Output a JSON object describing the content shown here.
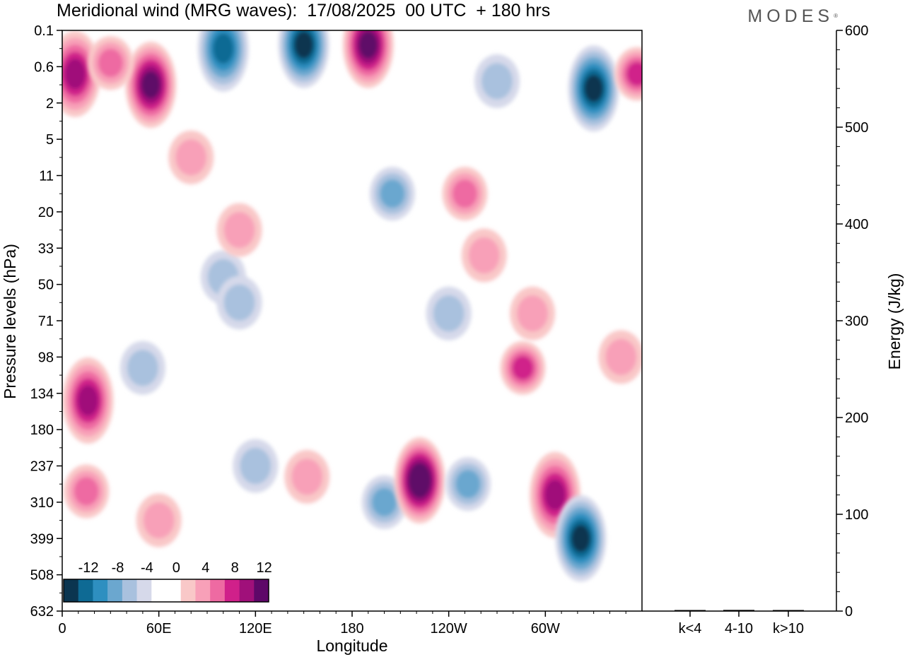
{
  "chart_data": [
    {
      "type": "heatmap",
      "title": "Meridional wind (MRG waves):  17/08/2025  00 UTC  + 180 hrs",
      "brand": "MODES",
      "brand_mark": "®",
      "xlabel": "Longitude",
      "ylabel": "Pressure levels (hPa)",
      "x_ticks": [
        {
          "label": "0",
          "lon": 0
        },
        {
          "label": "60E",
          "lon": 60
        },
        {
          "label": "120E",
          "lon": 120
        },
        {
          "label": "180",
          "lon": 180
        },
        {
          "label": "120W",
          "lon": 240
        },
        {
          "label": "60W",
          "lon": 300
        }
      ],
      "xlim": [
        0,
        360
      ],
      "y_levels": [
        "0.1",
        "0.6",
        "2",
        "5",
        "11",
        "20",
        "33",
        "50",
        "71",
        "98",
        "134",
        "180",
        "237",
        "310",
        "399",
        "508",
        "632"
      ],
      "colorbar": {
        "labels": [
          "-12",
          "-8",
          "-4",
          "0",
          "4",
          "8",
          "12"
        ],
        "colors": [
          "#0b3550",
          "#0e6a94",
          "#2e8fc0",
          "#6ba7cf",
          "#a9c1de",
          "#d6d9ea",
          "#ffffff",
          "#ffffff",
          "#f9c8c8",
          "#f8a0b8",
          "#ee6aa2",
          "#d0208a",
          "#a0107a",
          "#5e0868"
        ]
      },
      "features": [
        {
          "lon": 8,
          "level": 1.2,
          "value": 10
        },
        {
          "lon": 55,
          "level": 1.5,
          "value": 12
        },
        {
          "lon": 30,
          "level": 0.9,
          "value": 6
        },
        {
          "lon": 80,
          "level": 3.5,
          "value": 5
        },
        {
          "lon": 100,
          "level": 0.5,
          "value": -10
        },
        {
          "lon": 150,
          "level": 0.4,
          "value": -12
        },
        {
          "lon": 190,
          "level": 0.4,
          "value": 12
        },
        {
          "lon": 205,
          "level": 4.5,
          "value": -6
        },
        {
          "lon": 250,
          "level": 4.5,
          "value": 6
        },
        {
          "lon": 270,
          "level": 1.4,
          "value": -5
        },
        {
          "lon": 330,
          "level": 1.6,
          "value": -12
        },
        {
          "lon": 357,
          "level": 1.2,
          "value": 9
        },
        {
          "lon": 16,
          "level": 10.2,
          "value": 10
        },
        {
          "lon": 15,
          "level": 12.7,
          "value": 6
        },
        {
          "lon": 120,
          "level": 12.0,
          "value": -5
        },
        {
          "lon": 152,
          "level": 12.3,
          "value": 4
        },
        {
          "lon": 200,
          "level": 13.0,
          "value": -6
        },
        {
          "lon": 222,
          "level": 12.4,
          "value": 14
        },
        {
          "lon": 252,
          "level": 12.5,
          "value": -6
        },
        {
          "lon": 286,
          "level": 9.3,
          "value": 8
        },
        {
          "lon": 306,
          "level": 12.8,
          "value": 10
        },
        {
          "lon": 322,
          "level": 14.0,
          "value": -12
        },
        {
          "lon": 347,
          "level": 9.0,
          "value": 4
        },
        {
          "lon": 60,
          "level": 13.5,
          "value": 5
        },
        {
          "lon": 100,
          "level": 6.8,
          "value": -4
        },
        {
          "lon": 110,
          "level": 7.5,
          "value": -4
        },
        {
          "lon": 110,
          "level": 5.5,
          "value": 4
        },
        {
          "lon": 262,
          "level": 6.2,
          "value": 4
        },
        {
          "lon": 292,
          "level": 7.8,
          "value": 4
        },
        {
          "lon": 240,
          "level": 7.8,
          "value": -5
        },
        {
          "lon": 50,
          "level": 9.3,
          "value": -4
        }
      ]
    },
    {
      "type": "bar",
      "ylabel": "Energy (J/kg)",
      "ylim": [
        0,
        600
      ],
      "y_ticks": [
        "0",
        "100",
        "200",
        "300",
        "400",
        "500",
        "600"
      ],
      "categories": [
        "k<4",
        "4-10",
        "k>10"
      ],
      "values": [
        0.3,
        1.2,
        0.3
      ]
    }
  ]
}
